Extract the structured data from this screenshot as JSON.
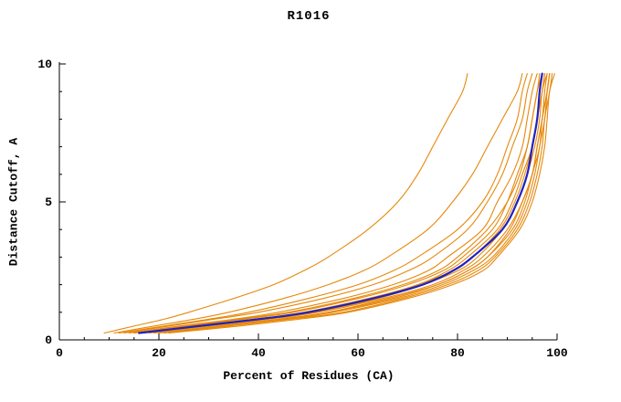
{
  "figure": {
    "title": "R1016"
  },
  "chart_data": {
    "type": "line",
    "title": "R1016",
    "xlabel": "Percent of Residues (CA)",
    "ylabel": "Distance Cutoff, A",
    "xlim": [
      0,
      100
    ],
    "ylim": [
      0,
      10
    ],
    "x_ticks": [
      0,
      20,
      40,
      60,
      80,
      100
    ],
    "x_minor_step": 5,
    "y_ticks": [
      0,
      5,
      10
    ],
    "y_minor_step": 1,
    "grid": false,
    "legend": "none",
    "colors": {
      "model": "#e6880a",
      "highlight": "#2121c0",
      "axis": "#000000",
      "background": "#ffffff"
    },
    "cutoffs": [
      0.25,
      0.5,
      0.75,
      1.0,
      1.5,
      2.0,
      2.5,
      3.0,
      4.0,
      5.0,
      6.0,
      7.0,
      8.0,
      9.0,
      9.65
    ],
    "series": [
      {
        "name": "model-01",
        "role": "model",
        "values": [
          9,
          15,
          21,
          26,
          35,
          43,
          49,
          54,
          62,
          68,
          72,
          75,
          78,
          81,
          82
        ]
      },
      {
        "name": "model-02",
        "role": "model",
        "values": [
          11,
          19,
          27,
          34,
          45,
          54,
          61,
          66,
          74,
          79,
          83,
          86,
          89,
          92,
          93
        ]
      },
      {
        "name": "model-03",
        "role": "model",
        "values": [
          13,
          22,
          31,
          40,
          53,
          63,
          70,
          75,
          82,
          86,
          89,
          91,
          93,
          94,
          95
        ]
      },
      {
        "name": "model-04",
        "role": "model",
        "values": [
          14,
          24,
          35,
          44,
          57,
          67,
          74,
          78,
          85,
          88,
          91,
          93,
          94,
          95,
          96
        ]
      },
      {
        "name": "model-05",
        "role": "model",
        "values": [
          15,
          26,
          37,
          47,
          60,
          70,
          77,
          81,
          87,
          90,
          92,
          94,
          95,
          96,
          97
        ]
      },
      {
        "name": "model-06",
        "role": "model",
        "values": [
          16,
          27,
          39,
          49,
          62,
          72,
          78,
          82,
          88,
          91,
          93,
          95,
          96,
          97,
          97.5
        ]
      },
      {
        "name": "model-07",
        "role": "model",
        "values": [
          17,
          29,
          41,
          51,
          64,
          73,
          80,
          84,
          89,
          92,
          94,
          95.5,
          96.5,
          97,
          98
        ]
      },
      {
        "name": "model-08",
        "role": "model",
        "values": [
          18,
          30,
          42,
          52,
          65,
          75,
          81,
          85,
          90,
          93,
          95,
          96,
          97,
          97.5,
          98
        ]
      },
      {
        "name": "model-09",
        "role": "model",
        "values": [
          19,
          32,
          44,
          54,
          66,
          76,
          82,
          86,
          91,
          93.5,
          95,
          96.5,
          97,
          98,
          98.5
        ]
      },
      {
        "name": "model-10",
        "role": "model",
        "values": [
          20,
          33,
          45,
          55,
          68,
          77,
          83,
          87,
          91.5,
          94,
          95.5,
          96.5,
          97.5,
          98,
          98.5
        ]
      },
      {
        "name": "model-11",
        "role": "model",
        "values": [
          21,
          34,
          46,
          57,
          69,
          78,
          84,
          87.5,
          92,
          94.5,
          96,
          97,
          97.5,
          98.5,
          99
        ]
      },
      {
        "name": "model-12",
        "role": "model",
        "values": [
          22,
          36,
          48,
          58,
          70,
          79,
          85,
          88,
          92.5,
          95,
          96.5,
          97.5,
          98,
          98.5,
          99.5
        ]
      },
      {
        "name": "model-13",
        "role": "model",
        "values": [
          12,
          21,
          30,
          38,
          50,
          60,
          67,
          72,
          80,
          85,
          88,
          90,
          92,
          93,
          94
        ]
      },
      {
        "name": "model-14",
        "role": "model",
        "values": [
          15,
          25,
          36,
          46,
          59,
          69,
          76,
          80,
          86,
          90,
          92.5,
          94,
          95,
          96,
          96.5
        ]
      },
      {
        "name": "model-15",
        "role": "model",
        "values": [
          17,
          28,
          40,
          50,
          63,
          72,
          79,
          83,
          88.5,
          91.5,
          93.5,
          95,
          96,
          97,
          97.5
        ]
      },
      {
        "name": "model-16",
        "role": "model",
        "values": [
          20,
          32,
          44,
          54,
          67,
          76,
          82,
          86,
          90.5,
          93,
          95,
          96,
          97,
          98,
          98.5
        ]
      },
      {
        "name": "highlight-model",
        "role": "highlight",
        "values": [
          16,
          28,
          40,
          50,
          63,
          73,
          79,
          83,
          89,
          92,
          94,
          95,
          96,
          96.5,
          97
        ]
      }
    ]
  }
}
